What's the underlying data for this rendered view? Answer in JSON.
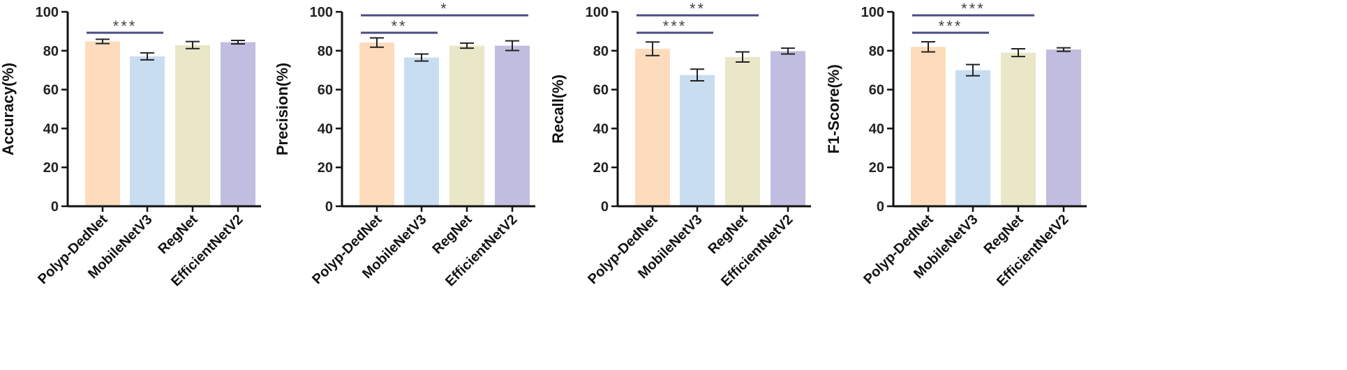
{
  "chart_data": [
    {
      "type": "bar",
      "ylabel": "Accuracy(%)",
      "ylim": [
        0,
        100
      ],
      "yticks": [
        0,
        20,
        40,
        60,
        80,
        100
      ],
      "categories": [
        "Polyp-DedNet",
        "MobileNetV3",
        "RegNet",
        "EfficientNetV2"
      ],
      "values": [
        84.8,
        77.1,
        82.9,
        84.4
      ],
      "errors": [
        1.1,
        1.8,
        1.8,
        0.9
      ],
      "significance": [
        {
          "from": 0,
          "to": 1,
          "label": "***"
        }
      ]
    },
    {
      "type": "bar",
      "ylabel": "Precision(%)",
      "ylim": [
        0,
        100
      ],
      "yticks": [
        0,
        20,
        40,
        60,
        80,
        100
      ],
      "categories": [
        "Polyp-DedNet",
        "MobileNetV3",
        "RegNet",
        "EfficientNetV2"
      ],
      "values": [
        84.2,
        76.5,
        82.6,
        82.6
      ],
      "errors": [
        2.4,
        1.8,
        1.3,
        2.5
      ],
      "significance": [
        {
          "from": 0,
          "to": 1,
          "label": "**"
        },
        {
          "from": 0,
          "to": 3,
          "label": "*"
        }
      ]
    },
    {
      "type": "bar",
      "ylabel": "Recall(%)",
      "ylim": [
        0,
        100
      ],
      "yticks": [
        0,
        20,
        40,
        60,
        80,
        100
      ],
      "categories": [
        "Polyp-DedNet",
        "MobileNetV3",
        "RegNet",
        "EfficientNetV2"
      ],
      "values": [
        81.0,
        67.5,
        76.8,
        79.8
      ],
      "errors": [
        3.5,
        3.0,
        2.6,
        1.5
      ],
      "significance": [
        {
          "from": 0,
          "to": 1,
          "label": "***"
        },
        {
          "from": 0,
          "to": 2,
          "label": "**"
        }
      ]
    },
    {
      "type": "bar",
      "ylabel": "F1-Score(%)",
      "ylim": [
        0,
        100
      ],
      "yticks": [
        0,
        20,
        40,
        60,
        80,
        100
      ],
      "categories": [
        "Polyp-DedNet",
        "MobileNetV3",
        "RegNet",
        "EfficientNetV2"
      ],
      "values": [
        82.0,
        70.0,
        79.0,
        80.6
      ],
      "errors": [
        2.6,
        2.9,
        2.0,
        0.9
      ],
      "significance": [
        {
          "from": 0,
          "to": 1,
          "label": "***"
        },
        {
          "from": 0,
          "to": 2,
          "label": "***"
        }
      ]
    }
  ],
  "colors": {
    "bars": [
      "#fddcbd",
      "#c9ddf1",
      "#e9e7c8",
      "#c1bde0"
    ],
    "bracket": "#4b4b85",
    "axis": "#111111"
  }
}
